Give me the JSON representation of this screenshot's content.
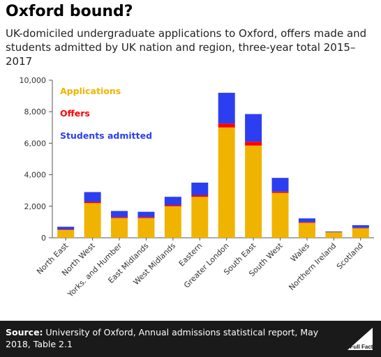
{
  "title": "Oxford bound?",
  "subtitle": "UK-domiciled undergraduate applications to Oxford, offers made and students admitted by UK nation and region, three-year total 2015–2017",
  "footer": {
    "source_label": "Source:",
    "source_text": "University of Oxford, Annual admissions statistical report, May 2018, Table 2.1",
    "logo_text": "Full Fact"
  },
  "colors": {
    "applications": "#f0b400",
    "offers": "#ff0000",
    "admitted": "#2b3ff0",
    "footer_bg": "#1a1a1a"
  },
  "chart_data": {
    "type": "bar",
    "stacked": true,
    "categories": [
      "North East",
      "North West",
      "Yorks. and Humber",
      "East Midlands",
      "West Midlands",
      "Eastern",
      "Greater London",
      "South East",
      "South West",
      "Wales",
      "Northern Ireland",
      "Scotland"
    ],
    "series": [
      {
        "name": "Applications",
        "color": "#f0b400",
        "values": [
          500,
          2200,
          1250,
          1250,
          2000,
          2600,
          7000,
          5850,
          2850,
          950,
          350,
          600
        ]
      },
      {
        "name": "Offers",
        "color": "#ff0000",
        "values": [
          30,
          80,
          60,
          60,
          80,
          100,
          250,
          250,
          80,
          40,
          10,
          30
        ]
      },
      {
        "name": "Students admitted",
        "color": "#2b3ff0",
        "values": [
          170,
          620,
          390,
          340,
          520,
          800,
          1950,
          1750,
          870,
          240,
          40,
          170
        ]
      }
    ],
    "ylim": [
      0,
      10000
    ],
    "yticks": [
      "0",
      "2,000",
      "4,000",
      "6,000",
      "8,000",
      "10,000"
    ],
    "ytick_values": [
      0,
      2000,
      4000,
      6000,
      8000,
      10000
    ],
    "legend_position": "top-left, inside plot",
    "grid": false
  }
}
